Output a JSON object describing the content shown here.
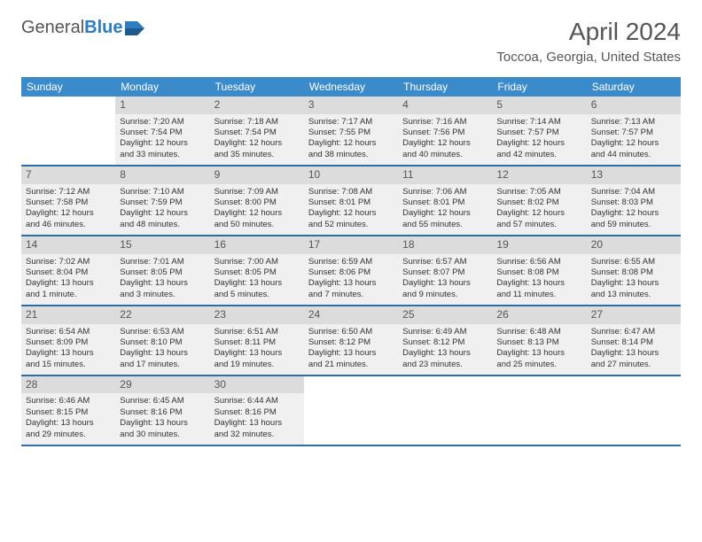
{
  "logo": {
    "word1": "General",
    "word2": "Blue"
  },
  "title": "April 2024",
  "location": "Toccoa, Georgia, United States",
  "dayNames": [
    "Sunday",
    "Monday",
    "Tuesday",
    "Wednesday",
    "Thursday",
    "Friday",
    "Saturday"
  ],
  "colors": {
    "header_bg": "#3b8bca",
    "header_text": "#ffffff",
    "border": "#2d6ea8",
    "daynum_bg": "#dcdcdc",
    "cell_bg": "#f0f0f0",
    "logo_blue": "#2d7dc0"
  },
  "weeks": [
    [
      null,
      {
        "n": "1",
        "sr": "Sunrise: 7:20 AM",
        "ss": "Sunset: 7:54 PM",
        "d1": "Daylight: 12 hours",
        "d2": "and 33 minutes."
      },
      {
        "n": "2",
        "sr": "Sunrise: 7:18 AM",
        "ss": "Sunset: 7:54 PM",
        "d1": "Daylight: 12 hours",
        "d2": "and 35 minutes."
      },
      {
        "n": "3",
        "sr": "Sunrise: 7:17 AM",
        "ss": "Sunset: 7:55 PM",
        "d1": "Daylight: 12 hours",
        "d2": "and 38 minutes."
      },
      {
        "n": "4",
        "sr": "Sunrise: 7:16 AM",
        "ss": "Sunset: 7:56 PM",
        "d1": "Daylight: 12 hours",
        "d2": "and 40 minutes."
      },
      {
        "n": "5",
        "sr": "Sunrise: 7:14 AM",
        "ss": "Sunset: 7:57 PM",
        "d1": "Daylight: 12 hours",
        "d2": "and 42 minutes."
      },
      {
        "n": "6",
        "sr": "Sunrise: 7:13 AM",
        "ss": "Sunset: 7:57 PM",
        "d1": "Daylight: 12 hours",
        "d2": "and 44 minutes."
      }
    ],
    [
      {
        "n": "7",
        "sr": "Sunrise: 7:12 AM",
        "ss": "Sunset: 7:58 PM",
        "d1": "Daylight: 12 hours",
        "d2": "and 46 minutes."
      },
      {
        "n": "8",
        "sr": "Sunrise: 7:10 AM",
        "ss": "Sunset: 7:59 PM",
        "d1": "Daylight: 12 hours",
        "d2": "and 48 minutes."
      },
      {
        "n": "9",
        "sr": "Sunrise: 7:09 AM",
        "ss": "Sunset: 8:00 PM",
        "d1": "Daylight: 12 hours",
        "d2": "and 50 minutes."
      },
      {
        "n": "10",
        "sr": "Sunrise: 7:08 AM",
        "ss": "Sunset: 8:01 PM",
        "d1": "Daylight: 12 hours",
        "d2": "and 52 minutes."
      },
      {
        "n": "11",
        "sr": "Sunrise: 7:06 AM",
        "ss": "Sunset: 8:01 PM",
        "d1": "Daylight: 12 hours",
        "d2": "and 55 minutes."
      },
      {
        "n": "12",
        "sr": "Sunrise: 7:05 AM",
        "ss": "Sunset: 8:02 PM",
        "d1": "Daylight: 12 hours",
        "d2": "and 57 minutes."
      },
      {
        "n": "13",
        "sr": "Sunrise: 7:04 AM",
        "ss": "Sunset: 8:03 PM",
        "d1": "Daylight: 12 hours",
        "d2": "and 59 minutes."
      }
    ],
    [
      {
        "n": "14",
        "sr": "Sunrise: 7:02 AM",
        "ss": "Sunset: 8:04 PM",
        "d1": "Daylight: 13 hours",
        "d2": "and 1 minute."
      },
      {
        "n": "15",
        "sr": "Sunrise: 7:01 AM",
        "ss": "Sunset: 8:05 PM",
        "d1": "Daylight: 13 hours",
        "d2": "and 3 minutes."
      },
      {
        "n": "16",
        "sr": "Sunrise: 7:00 AM",
        "ss": "Sunset: 8:05 PM",
        "d1": "Daylight: 13 hours",
        "d2": "and 5 minutes."
      },
      {
        "n": "17",
        "sr": "Sunrise: 6:59 AM",
        "ss": "Sunset: 8:06 PM",
        "d1": "Daylight: 13 hours",
        "d2": "and 7 minutes."
      },
      {
        "n": "18",
        "sr": "Sunrise: 6:57 AM",
        "ss": "Sunset: 8:07 PM",
        "d1": "Daylight: 13 hours",
        "d2": "and 9 minutes."
      },
      {
        "n": "19",
        "sr": "Sunrise: 6:56 AM",
        "ss": "Sunset: 8:08 PM",
        "d1": "Daylight: 13 hours",
        "d2": "and 11 minutes."
      },
      {
        "n": "20",
        "sr": "Sunrise: 6:55 AM",
        "ss": "Sunset: 8:08 PM",
        "d1": "Daylight: 13 hours",
        "d2": "and 13 minutes."
      }
    ],
    [
      {
        "n": "21",
        "sr": "Sunrise: 6:54 AM",
        "ss": "Sunset: 8:09 PM",
        "d1": "Daylight: 13 hours",
        "d2": "and 15 minutes."
      },
      {
        "n": "22",
        "sr": "Sunrise: 6:53 AM",
        "ss": "Sunset: 8:10 PM",
        "d1": "Daylight: 13 hours",
        "d2": "and 17 minutes."
      },
      {
        "n": "23",
        "sr": "Sunrise: 6:51 AM",
        "ss": "Sunset: 8:11 PM",
        "d1": "Daylight: 13 hours",
        "d2": "and 19 minutes."
      },
      {
        "n": "24",
        "sr": "Sunrise: 6:50 AM",
        "ss": "Sunset: 8:12 PM",
        "d1": "Daylight: 13 hours",
        "d2": "and 21 minutes."
      },
      {
        "n": "25",
        "sr": "Sunrise: 6:49 AM",
        "ss": "Sunset: 8:12 PM",
        "d1": "Daylight: 13 hours",
        "d2": "and 23 minutes."
      },
      {
        "n": "26",
        "sr": "Sunrise: 6:48 AM",
        "ss": "Sunset: 8:13 PM",
        "d1": "Daylight: 13 hours",
        "d2": "and 25 minutes."
      },
      {
        "n": "27",
        "sr": "Sunrise: 6:47 AM",
        "ss": "Sunset: 8:14 PM",
        "d1": "Daylight: 13 hours",
        "d2": "and 27 minutes."
      }
    ],
    [
      {
        "n": "28",
        "sr": "Sunrise: 6:46 AM",
        "ss": "Sunset: 8:15 PM",
        "d1": "Daylight: 13 hours",
        "d2": "and 29 minutes."
      },
      {
        "n": "29",
        "sr": "Sunrise: 6:45 AM",
        "ss": "Sunset: 8:16 PM",
        "d1": "Daylight: 13 hours",
        "d2": "and 30 minutes."
      },
      {
        "n": "30",
        "sr": "Sunrise: 6:44 AM",
        "ss": "Sunset: 8:16 PM",
        "d1": "Daylight: 13 hours",
        "d2": "and 32 minutes."
      },
      null,
      null,
      null,
      null
    ]
  ]
}
